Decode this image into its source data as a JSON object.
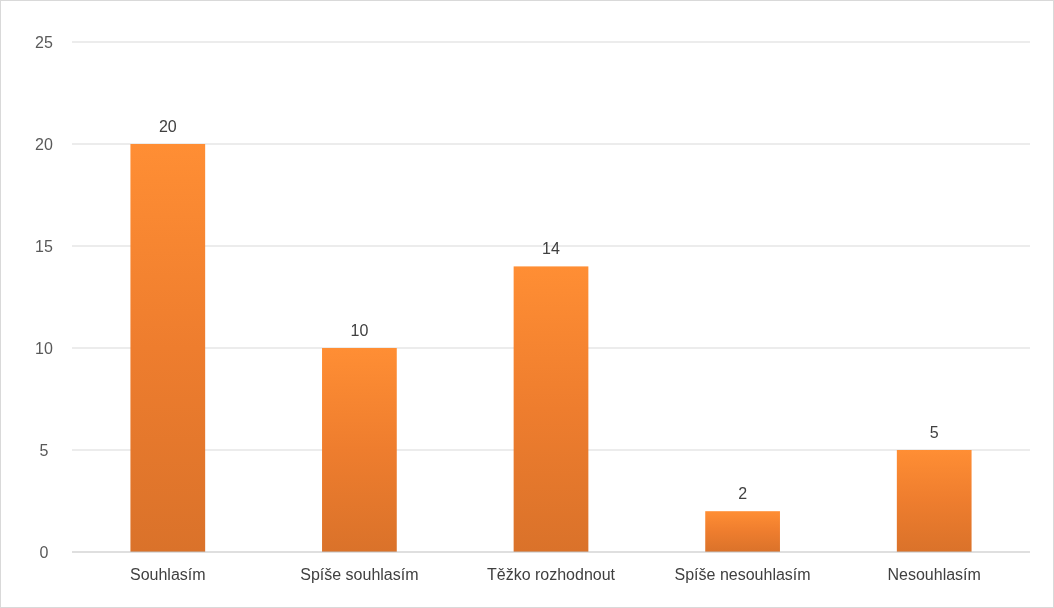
{
  "chart_data": {
    "type": "bar",
    "categories": [
      "Souhlasím",
      "Spíše souhlasím",
      "Těžko rozhodnout",
      "Spíše nesouhlasím",
      "Nesouhlasím"
    ],
    "values": [
      20,
      10,
      14,
      2,
      5
    ],
    "color": "#ee7d2e",
    "ylim": [
      0,
      25
    ],
    "yticks": [
      0,
      5,
      10,
      15,
      20,
      25
    ],
    "grid": "y",
    "data_labels": true
  }
}
